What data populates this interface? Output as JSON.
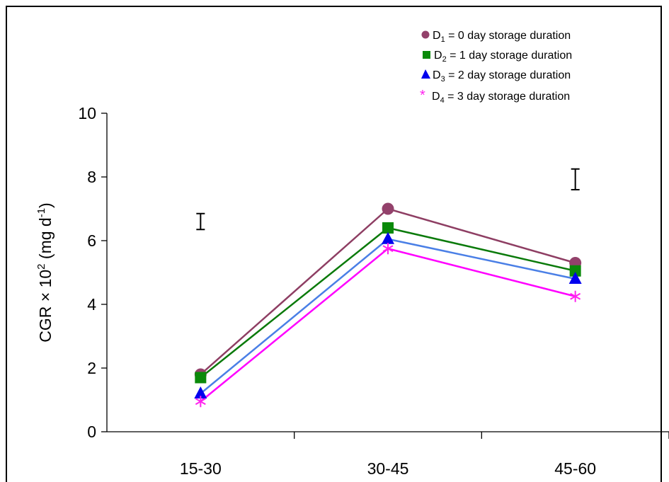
{
  "chart_data": {
    "type": "line",
    "categories": [
      "15-30",
      "30-45",
      "45-60"
    ],
    "ylabel_parts": {
      "base": "CGR × 10",
      "exp": "2",
      "unit_open": " (mg  d",
      "unit_exp": "-1",
      "unit_close": ")"
    },
    "ylim": [
      0,
      10
    ],
    "yticks": [
      "0",
      "2",
      "4",
      "6",
      "8",
      "10"
    ],
    "grid": false,
    "legend_position": "top-right",
    "series": [
      {
        "name": "D1 = 0 day storage duration",
        "name_parts": {
          "pre": "D",
          "sub": "1",
          "post": " = 0 day storage duration"
        },
        "values": [
          1.8,
          7.0,
          5.3
        ],
        "line_color": "#8e3e63",
        "marker_color": "#93416b",
        "marker": "circle"
      },
      {
        "name": "D2 = 1 day storage duration",
        "name_parts": {
          "pre": "D",
          "sub": "2",
          "post": " = 1 day storage duration"
        },
        "values": [
          1.7,
          6.4,
          5.05
        ],
        "line_color": "#0a7a0a",
        "marker_color": "#0a8a0a",
        "marker": "square"
      },
      {
        "name": "D3 = 2 day storage duration",
        "name_parts": {
          "pre": "D",
          "sub": "3",
          "post": " = 2 day storage duration"
        },
        "values": [
          1.2,
          6.05,
          4.8
        ],
        "line_color": "#4a7fe6",
        "marker_color": "#0000ee",
        "marker": "triangle"
      },
      {
        "name": "D4 = 3 day storage duration",
        "name_parts": {
          "pre": "D",
          "sub": "4",
          "post": " = 3 day storage duration"
        },
        "values": [
          0.95,
          5.75,
          4.25
        ],
        "line_color": "#ff00ff",
        "marker_color": "#ff22ee",
        "marker": "asterisk"
      }
    ],
    "error_bars": [
      {
        "category": "15-30",
        "low": 6.35,
        "high": 6.85
      },
      {
        "category": "45-60",
        "low": 7.6,
        "high": 8.25
      }
    ]
  }
}
